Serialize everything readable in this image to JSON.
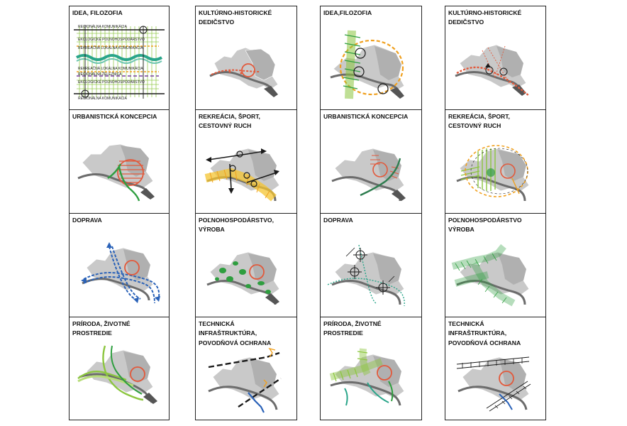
{
  "panels": [
    {
      "title": "IDEA, FILOZOFIA",
      "kind": "idea-diagram",
      "labels": {
        "regional_top": "REGIONÁLNA KOMUNIKÁCIA",
        "eko1": "EKOLOGICKÉ POĽNOHOSPODÁRSTVO",
        "rek1": "REKREAČNÁ LOKÁLNA KOMUNIKÁCIA",
        "rek2": "REKREAČNÁ LOKÁLNA KOMUNIKÁCIA",
        "rail": "REGIONÁLNA ŽELEZNICA",
        "eko2": "EKOLOGICKÉ POĽNOHOSPODÁRSTVO",
        "regional_bottom": "REGIONÁLNA KOMUNIKÁCIA"
      }
    },
    {
      "title": "KULTÚRNO-HISTORICKÉ\nDEDIČSTVO",
      "kind": "heritage-a"
    },
    {
      "title": "IDEA,FILOZOFIA",
      "kind": "idea-b"
    },
    {
      "title": "KULTÚRNO-HISTORICKÉ\nDEDIČSTVO",
      "kind": "heritage-b"
    },
    {
      "title": "URBANISTICKÁ KONCEPCIA",
      "kind": "urban-a"
    },
    {
      "title": "REKREÁCIA, ŠPORT,\nCESTOVNÝ RUCH",
      "kind": "recreation-a"
    },
    {
      "title": "URBANISTICKÁ KONCEPCIA",
      "kind": "urban-b"
    },
    {
      "title": "REKREÁCIA, ŠPORT,\nCESTOVNÝ RUCH",
      "kind": "recreation-b"
    },
    {
      "title": "DOPRAVA",
      "kind": "transport-a"
    },
    {
      "title": "POĽNOHOSPODÁRSTVO, VÝROBA",
      "kind": "agriculture-a"
    },
    {
      "title": "DOPRAVA",
      "kind": "transport-b"
    },
    {
      "title": "POĽNOHOSPODÁRSTVO\nVÝROBA",
      "kind": "agriculture-b"
    },
    {
      "title": "PRÍRODA, ŽIVOTNÉ PROSTREDIE",
      "kind": "nature-a"
    },
    {
      "title": "TECHNICKÁ INFRAŠTRUKTÚRA,\nPOVODŇOVÁ OCHRANA",
      "kind": "infrastructure-a"
    },
    {
      "title": "PRÍRODA, ŽIVOTNÉ PROSTREDIE",
      "kind": "nature-b"
    },
    {
      "title": "TECHNICKÁ INFRAŠTRUKTÚRA,\nPOVODŇOVÁ OCHRANA",
      "kind": "infrastructure-b"
    }
  ],
  "colors": {
    "map_fill": "#c9c9c9",
    "map_dark": "#9a9a9a",
    "river": "#6c6c6c",
    "red": "#e2593b",
    "green": "#2e9e3f",
    "lime": "#8cc63f",
    "orange": "#f0a01e",
    "blue": "#2a62b8",
    "black": "#1a1a1a",
    "teal": "#2aa58a",
    "yellow": "#f4c430"
  }
}
